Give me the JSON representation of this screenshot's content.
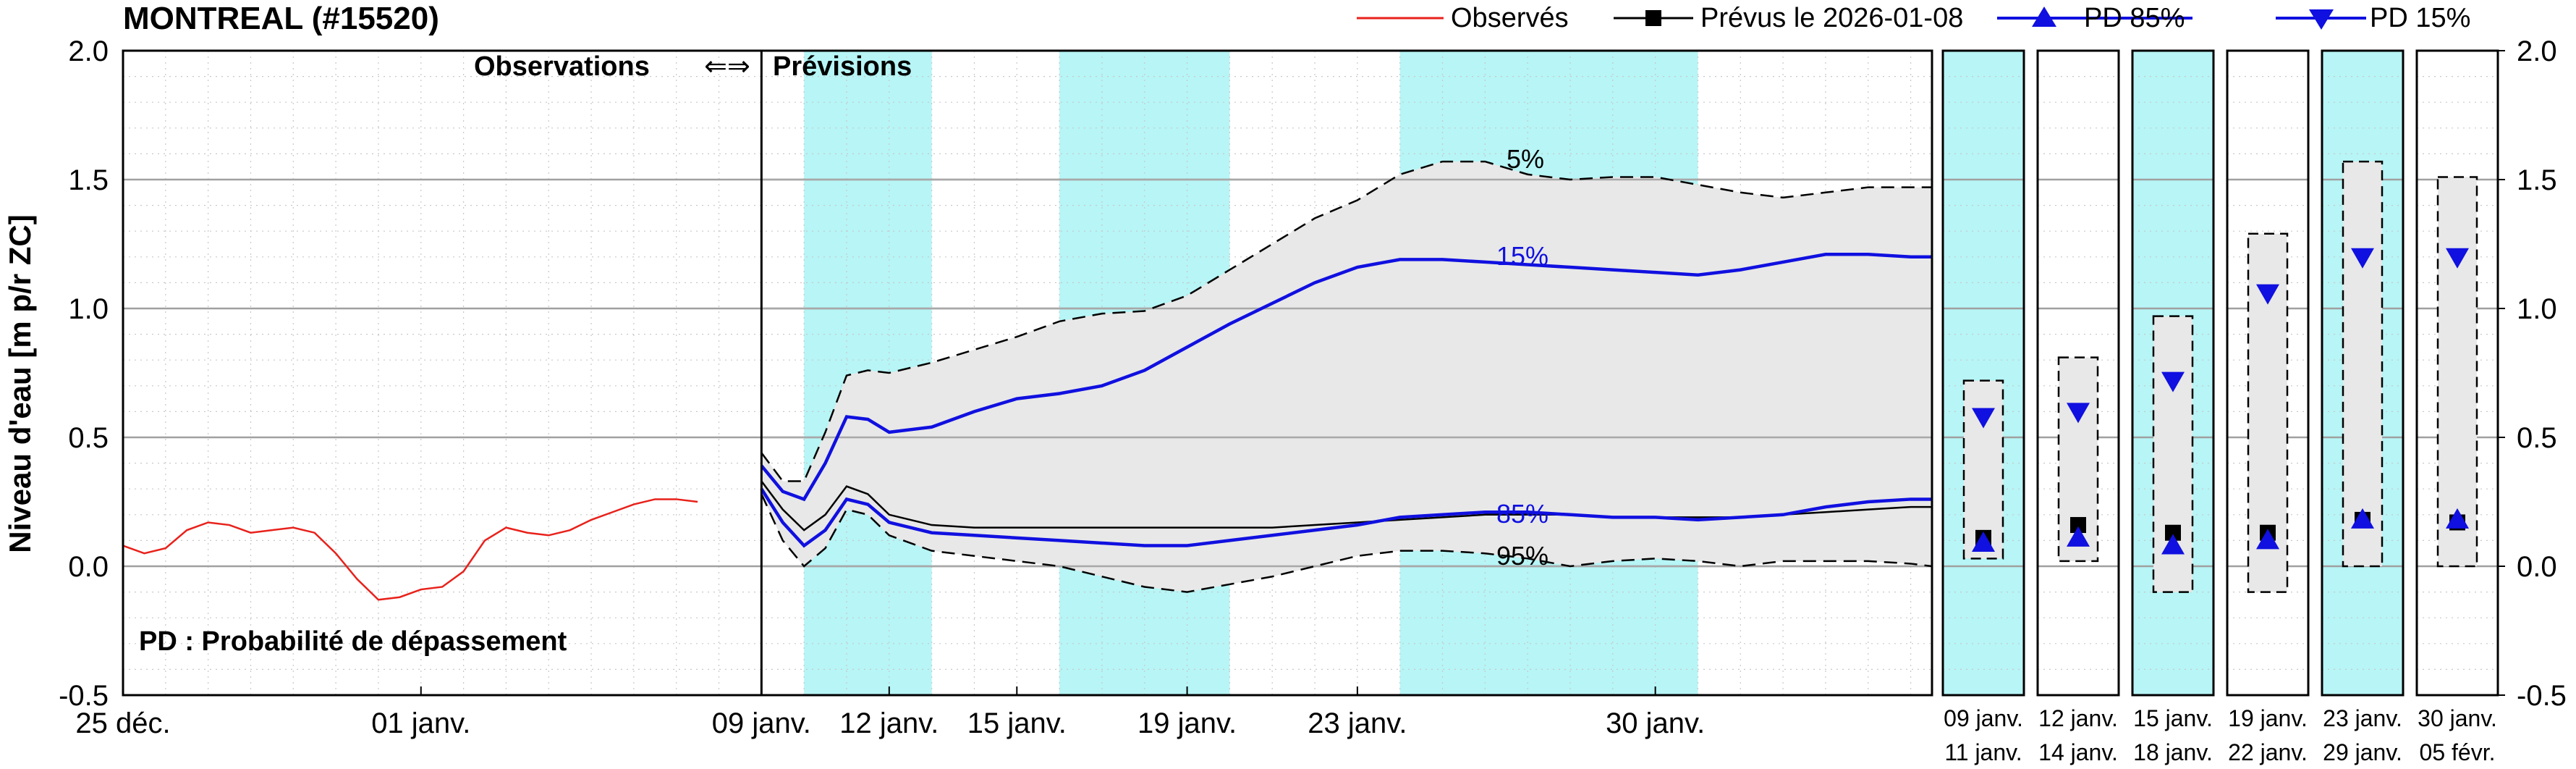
{
  "chart_data": {
    "type": "line",
    "title": "MONTREAL (#15520)",
    "ylabel": "Niveau d'eau [m p/r ZC]",
    "ylim": [
      -0.5,
      2.0
    ],
    "yticks": [
      -0.5,
      0.0,
      0.5,
      1.0,
      1.5,
      2.0
    ],
    "ytick_labels": [
      "-0.5",
      "0.0",
      "0.5",
      "1.0",
      "1.5",
      "2.0"
    ],
    "grid": true,
    "legend_position": "top",
    "legend": {
      "observed": "Observés",
      "forecast": "Prévus le 2026-01-08",
      "pd85": "PD 85%",
      "pd15": "PD 15%"
    },
    "colors": {
      "observed": "#e8211b",
      "forecast": "#000000",
      "pd": "#1010e0",
      "envelope": "#e8e8e8",
      "highlight": "#b7f5f6"
    },
    "annotations": {
      "observations": "Observations",
      "arrows": "⇐⇒",
      "previsions": "Prévisions",
      "pd_note": "PD : Probabilité de dépassement",
      "p5": "5%",
      "p15": "15%",
      "p85": "85%",
      "p95": "95%"
    },
    "x_axis": {
      "unit": "days since 25 déc. 2025",
      "range": [
        0,
        42.5
      ],
      "forecast_start": 15,
      "ticks": [
        {
          "x": 0,
          "label": "25 déc."
        },
        {
          "x": 7,
          "label": "01 janv."
        },
        {
          "x": 15,
          "label": "09 janv."
        },
        {
          "x": 18,
          "label": "12 janv."
        },
        {
          "x": 21,
          "label": "15 janv."
        },
        {
          "x": 25,
          "label": "19 janv."
        },
        {
          "x": 29,
          "label": "23 janv."
        },
        {
          "x": 36,
          "label": "30 janv."
        }
      ]
    },
    "highlight_bands": [
      [
        16,
        19
      ],
      [
        22,
        26
      ],
      [
        30,
        37
      ]
    ],
    "series": [
      {
        "name": "Observés",
        "x": [
          0,
          0.5,
          1,
          1.5,
          2,
          2.5,
          3,
          3.5,
          4,
          4.5,
          5,
          5.5,
          6,
          6.5,
          7,
          7.5,
          8,
          8.5,
          9,
          9.5,
          10,
          10.5,
          11,
          11.5,
          12,
          12.5,
          13,
          13.5
        ],
        "values": [
          0.08,
          0.05,
          0.07,
          0.14,
          0.17,
          0.16,
          0.13,
          0.14,
          0.15,
          0.13,
          0.05,
          -0.05,
          -0.13,
          -0.12,
          -0.09,
          -0.08,
          -0.02,
          0.1,
          0.15,
          0.13,
          0.12,
          0.14,
          0.18,
          0.21,
          0.24,
          0.26,
          0.26,
          0.25
        ]
      },
      {
        "name": "Prévus le 2026-01-08",
        "x": [
          15,
          15.5,
          16,
          16.5,
          17,
          17.5,
          18,
          19,
          20,
          21,
          22,
          23,
          24,
          25,
          26,
          27,
          28,
          29,
          30,
          31,
          32,
          33,
          34,
          35,
          36,
          37,
          38,
          39,
          40,
          41,
          42,
          42.5
        ],
        "values": [
          0.33,
          0.22,
          0.14,
          0.2,
          0.31,
          0.28,
          0.2,
          0.16,
          0.15,
          0.15,
          0.15,
          0.15,
          0.15,
          0.15,
          0.15,
          0.15,
          0.16,
          0.17,
          0.18,
          0.19,
          0.2,
          0.2,
          0.2,
          0.19,
          0.19,
          0.19,
          0.19,
          0.2,
          0.21,
          0.22,
          0.23,
          0.23
        ]
      },
      {
        "name": "PD 85%",
        "x": [
          15,
          15.5,
          16,
          16.5,
          17,
          17.5,
          18,
          19,
          20,
          21,
          22,
          23,
          24,
          25,
          26,
          27,
          28,
          29,
          30,
          31,
          32,
          33,
          34,
          35,
          36,
          37,
          38,
          39,
          40,
          41,
          42,
          42.5
        ],
        "values": [
          0.3,
          0.17,
          0.08,
          0.14,
          0.26,
          0.24,
          0.17,
          0.13,
          0.12,
          0.11,
          0.1,
          0.09,
          0.08,
          0.08,
          0.1,
          0.12,
          0.14,
          0.16,
          0.19,
          0.2,
          0.21,
          0.21,
          0.2,
          0.19,
          0.19,
          0.18,
          0.19,
          0.2,
          0.23,
          0.25,
          0.26,
          0.26
        ]
      },
      {
        "name": "PD 15%",
        "x": [
          15,
          15.5,
          16,
          16.5,
          17,
          17.5,
          18,
          19,
          20,
          21,
          22,
          23,
          24,
          25,
          26,
          27,
          28,
          29,
          30,
          31,
          32,
          33,
          34,
          35,
          36,
          37,
          38,
          39,
          40,
          41,
          42,
          42.5
        ],
        "values": [
          0.39,
          0.29,
          0.26,
          0.4,
          0.58,
          0.57,
          0.52,
          0.54,
          0.6,
          0.65,
          0.67,
          0.7,
          0.76,
          0.85,
          0.94,
          1.02,
          1.1,
          1.16,
          1.19,
          1.19,
          1.18,
          1.17,
          1.16,
          1.15,
          1.14,
          1.13,
          1.15,
          1.18,
          1.21,
          1.21,
          1.2,
          1.2
        ]
      },
      {
        "name": "5%",
        "x": [
          15,
          15.5,
          16,
          16.5,
          17,
          17.5,
          18,
          19,
          20,
          21,
          22,
          23,
          24,
          25,
          26,
          27,
          28,
          29,
          30,
          31,
          32,
          33,
          34,
          35,
          36,
          37,
          38,
          39,
          40,
          41,
          42,
          42.5
        ],
        "values": [
          0.44,
          0.33,
          0.33,
          0.52,
          0.74,
          0.76,
          0.75,
          0.79,
          0.84,
          0.89,
          0.95,
          0.98,
          0.99,
          1.05,
          1.15,
          1.25,
          1.35,
          1.42,
          1.52,
          1.57,
          1.57,
          1.52,
          1.5,
          1.51,
          1.51,
          1.48,
          1.45,
          1.43,
          1.45,
          1.47,
          1.47,
          1.47
        ]
      },
      {
        "name": "95%",
        "x": [
          15,
          15.5,
          16,
          16.5,
          17,
          17.5,
          18,
          19,
          20,
          21,
          22,
          23,
          24,
          25,
          26,
          27,
          28,
          29,
          30,
          31,
          32,
          33,
          34,
          35,
          36,
          37,
          38,
          39,
          40,
          41,
          42,
          42.5
        ],
        "values": [
          0.28,
          0.1,
          0.0,
          0.07,
          0.22,
          0.2,
          0.12,
          0.06,
          0.04,
          0.02,
          0.0,
          -0.04,
          -0.08,
          -0.1,
          -0.07,
          -0.04,
          0.0,
          0.04,
          0.06,
          0.06,
          0.05,
          0.03,
          0.0,
          0.02,
          0.03,
          0.02,
          0.0,
          0.02,
          0.02,
          0.02,
          0.01,
          0.0
        ]
      }
    ],
    "weekly_panels": [
      {
        "label1": "09  janv.",
        "label2": "11  janv.",
        "highlight": true,
        "low": 0.03,
        "high": 0.72,
        "forecast": 0.11,
        "pd85": 0.09,
        "pd15": 0.58
      },
      {
        "label1": "12  janv.",
        "label2": "14  janv.",
        "highlight": false,
        "low": 0.02,
        "high": 0.81,
        "forecast": 0.16,
        "pd85": 0.11,
        "pd15": 0.6
      },
      {
        "label1": "15  janv.",
        "label2": "18  janv.",
        "highlight": true,
        "low": -0.1,
        "high": 0.97,
        "forecast": 0.13,
        "pd85": 0.08,
        "pd15": 0.72
      },
      {
        "label1": "19  janv.",
        "label2": "22  janv.",
        "highlight": false,
        "low": -0.1,
        "high": 1.29,
        "forecast": 0.13,
        "pd85": 0.1,
        "pd15": 1.06
      },
      {
        "label1": "23  janv.",
        "label2": "29  janv.",
        "highlight": true,
        "low": 0.0,
        "high": 1.57,
        "forecast": 0.18,
        "pd85": 0.18,
        "pd15": 1.2
      },
      {
        "label1": "30  janv.",
        "label2": "05  févr.",
        "highlight": false,
        "low": 0.0,
        "high": 1.51,
        "forecast": 0.17,
        "pd85": 0.18,
        "pd15": 1.2
      }
    ]
  }
}
